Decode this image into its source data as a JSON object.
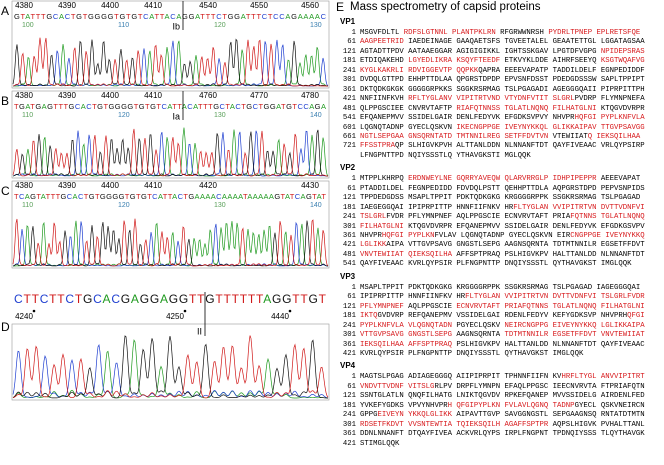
{
  "panels": [
    {
      "label": "A",
      "positions": [
        [
          4380,
          4390,
          4400,
          4410
        ],
        [
          4540,
          4550,
          4560
        ]
      ],
      "sequence": "GTATTTGCACTGTGGGGTGTGTCATTACAGGATTTCTGGATTTCTCCAGAAAAC",
      "trace_numbers": [
        100,
        110,
        120,
        130
      ],
      "junction": "Ib"
    },
    {
      "label": "B",
      "positions": [
        [
          4380,
          4390,
          4400,
          4410
        ],
        [
          4760,
          4770,
          4780
        ]
      ],
      "sequence": "TGATGAGTTTGCACTGTGGGGTGTGTCATTACATTTGCTACTGCTGGATGTCCAGA",
      "trace_numbers": [
        110,
        120,
        130,
        140
      ],
      "junction": "Ia"
    },
    {
      "label": "C",
      "positions": [
        [
          4380,
          4390,
          4400,
          4410
        ],
        [
          4420,
          4430
        ]
      ],
      "sequence": "TCAGTATTTGCACTGTGGGGTGTGTCATTACTGAAAACAAAATAAAAAGTATCAGTAT",
      "trace_numbers": [
        110,
        120,
        130,
        140
      ]
    },
    {
      "label": "D",
      "positions": [
        [
          4240,
          4250
        ],
        [
          4440
        ]
      ],
      "sequence": "CTTCTTCTGCACGAGGAGGTTGTTTTTTAGGTTGT",
      "junction": "II"
    }
  ],
  "base_colors": {
    "A": "#1f9a1f",
    "C": "#1f3fd0",
    "G": "#111111",
    "T": "#d01818"
  },
  "panel_e": {
    "label": "E",
    "title": "Mass spectrometry of capsid proteins",
    "proteins": [
      {
        "name": "VP1",
        "lines": [
          {
            "number": 1,
            "segments": [
              {
                "text": "MSGVFDLTL "
              },
              {
                "text": "RDFSLGTNNL PLANTPKLRN",
                "color": "#d7191c"
              },
              {
                "text": " RFGRWWNRSH "
              },
              {
                "text": "PYDRLTPNEP EPLRETSFQE",
                "color": "#d7191c"
              }
            ]
          },
          {
            "number": 61,
            "segments": [
              {
                "text": "AAGPEETRID",
                "color": "#d7191c"
              },
              {
                "text": " IAEDEINAGE GAAQAETSFS TGVEETALEL GEAATETTGL LGGATAGSAA"
              }
            ]
          },
          {
            "number": 121,
            "segments": [
              {
                "text": "AGTADTTPDV AATAAEGGAR AGIGIGIKKL IGHTSSKGAV LPGTDFVGPG "
              },
              {
                "text": "NPIDEPSRAS",
                "color": "#d7191c"
              }
            ]
          },
          {
            "number": 181,
            "segments": [
              {
                "text": "ETDIQAKEHD "
              },
              {
                "text": "LGYEDLIKRA KSQYFTEEDF",
                "color": "#d7191c"
              },
              {
                "text": " ETKVYKLDDE AIHRFSEEYQ "
              },
              {
                "text": "KSGTWQAFVG",
                "color": "#d7191c"
              }
            ]
          },
          {
            "number": 241,
            "segments": [
              {
                "text": "KYGLKAKRLI RDVIGGEVTP QQPKK",
                "color": "#d7191c"
              },
              {
                "text": "QAPRA EEEEVAPATP TADDILDELF EGNPEDIDDF"
              }
            ]
          },
          {
            "number": 301,
            "segments": [
              {
                "text": "DVDQLGTTPD EHHPTTDLAA QPGRSTDPDP EPVSNFDSST PDEDGDSSSW SAPLTPPIPT"
              }
            ]
          },
          {
            "number": 361,
            "segments": [
              {
                "text": "DKTQDKGKGK GGGGGRPKKS SGGKRSRMAG TSLPGAGADI AGEGGGQAII PIPRPITTPH"
              }
            ]
          },
          {
            "number": 421,
            "segments": [
              {
                "text": "NNFIINFKVH "
              },
              {
                "text": "RFLTYGLANV VIPITRTVND VTYDNFVTIT SLGRL",
                "color": "#d7191c"
              },
              {
                "text": "PVDRP FLYMNPNEFA"
              }
            ]
          },
          {
            "number": 481,
            "segments": [
              {
                "text": "QLPPGSCIEE CNVRVTAFTP "
              },
              {
                "text": "RIAFQTNNSS TGLATLNQNQ FILHATGLNI",
                "color": "#d7191c"
              },
              {
                "text": " KTQGVDVRPR"
              }
            ]
          },
          {
            "number": 541,
            "segments": [
              {
                "text": "EFQANEPMVV SSIDELGAIR DENLFEDYVK EFGDKSVPVY NHVPR"
              },
              {
                "text": "HQFGI PYPLKNFVLA",
                "color": "#d7191c"
              }
            ]
          },
          {
            "number": 601,
            "segments": [
              {
                "text": "LQGNQTADNP GYECLQSKVN "
              },
              {
                "text": "IKECNGPPGE IVEYNYKKQL GLIKKAIPAV TTGVPSAVGG",
                "color": "#d7191c"
              }
            ]
          },
          {
            "number": 661,
            "segments": [
              {
                "text": "NGTLSEPGAA GNSQRNTATD TMTNNILREG SETFFDVTVN",
                "color": "#d7191c"
              },
              {
                "text": " VTEWIIAT"
              },
              {
                "text": "Q IEKSQILHAA",
                "color": "#d7191c"
              }
            ]
          },
          {
            "number": 721,
            "segments": [
              {
                "text": "FFSSTPRA",
                "color": "#d7191c"
              },
              {
                "text": "QP SLHIGVKPVH ALTTANLDDN NLNNANFTDT QAYFIVEAAC VRLQYPSIRP"
              }
            ]
          },
          {
            "segments": [
              {
                "text": "LFNGPNTTPD NQIYSSSTLQ YTHAVGKSTI MGLQQK"
              }
            ]
          }
        ]
      },
      {
        "name": "VP2",
        "lines": [
          {
            "number": 1,
            "segments": [
              {
                "text": "MTPPLKHRPQ "
              },
              {
                "text": "ERDNWEYLNE GQRRYAVEQW QLARVRRGLP IDHPIPEPPR",
                "color": "#d7191c"
              },
              {
                "text": " AEEEVAPAT"
              }
            ]
          },
          {
            "number": 61,
            "segments": [
              {
                "text": "PTADDILDEL FEGNPEDIDD FDVDQLPSTT QEHHPTTDLA AQPGRSTDPD PEPVSNPIDS"
              }
            ]
          },
          {
            "number": 121,
            "segments": [
              {
                "text": "TPPDEDGDSS MSAPLTPPIT PDKTQDKGKG KRGGGGRPPK SSGKRSRMAG TSLPGAGAD"
              }
            ]
          },
          {
            "number": 181,
            "segments": [
              {
                "text": "IAEGEGGQAI IPIPRPITTP HNNFIIFNKV HR"
              },
              {
                "text": "FLTYGLAN VVIPITRTVN DVTTVDNFVI",
                "color": "#d7191c"
              }
            ]
          },
          {
            "number": 241,
            "segments": [
              {
                "text": "TSLGRL",
                "color": "#d7191c"
              },
              {
                "text": "FVDR PFLYMNPNEF AQLPPGSCIE ECNVRVTAFT PRIA"
              },
              {
                "text": "FQTNNS TGLATLNQNQ",
                "color": "#d7191c"
              }
            ]
          },
          {
            "number": 301,
            "segments": [
              {
                "text": "FILHATGLNI",
                "color": "#d7191c"
              },
              {
                "text": " KTQGVDVRPR EFQANEPMVV SSIDELGAIR DENLFEDYVK EFGDKGSVPV"
              }
            ]
          },
          {
            "number": 361,
            "segments": [
              {
                "text": "NHVPR"
              },
              {
                "text": "HQFGI PYPLKN",
                "color": "#d7191c"
              },
              {
                "text": "FVLAV LQGNQTADNP GYECLQSKVN EIR"
              },
              {
                "text": "CNGPPGE IVEYNYKKQ",
                "color": "#d7191c"
              }
            ]
          },
          {
            "number": 421,
            "segments": [
              {
                "text": "LGLIKK",
                "color": "#d7191c"
              },
              {
                "text": "AIPA VTTGVPSAVG GNGSTLSEPG AAGNSQRNTA TDTMTNNILR EGSETFFDVT"
              }
            ]
          },
          {
            "number": 481,
            "segments": [
              {
                "text": "VNVTEWIIAT QIEKSQILHA",
                "color": "#d7191c"
              },
              {
                "text": " AFFSPTPRAQ PSLHIGVKPV HALTTANLDD NLNNANFTDT"
              }
            ]
          },
          {
            "number": 541,
            "segments": [
              {
                "text": "QAYFIVEAAC KVRLQYPSIR PLFNGPNTTP DNQIYSSSTL QYTHAVGKST IMGLQQK"
              }
            ]
          }
        ]
      },
      {
        "name": "VP3",
        "lines": [
          {
            "number": 1,
            "segments": [
              {
                "text": "MSAPLTPPIT PDKTQDKGKG KRGGGGRPPK SSGKRSRMAG TSLPGAGAD IAGEGGGQAI"
              }
            ]
          },
          {
            "number": 61,
            "segments": [
              {
                "text": "IPIPRPITTP HNNFIINFKV HR"
              },
              {
                "text": "FLTYGLAN VVIPITRTVN DVTTVDNFVI TSLGRLFVDR",
                "color": "#d7191c"
              }
            ]
          },
          {
            "number": 121,
            "segments": [
              {
                "text": "PFLYMNPNEF",
                "color": "#d7191c"
              },
              {
                "text": " AQLPPGSCIE "
              },
              {
                "text": "ECNVRVTAFT PRIAFQTNNS TGLATLNQNQ FILHATGLNI",
                "color": "#d7191c"
              }
            ]
          },
          {
            "number": 181,
            "segments": [
              {
                "text": "IKTQ",
                "color": "#d7191c"
              },
              {
                "text": "GVDVRP REFQANEPMV VSSIDELGAI RDENLFEDYV KEFYGDKSVP NHVPRH"
              },
              {
                "text": "QFGI",
                "color": "#d7191c"
              }
            ]
          },
          {
            "number": 241,
            "segments": [
              {
                "text": "PYPLKNFVLA VLQGNQTADN",
                "color": "#d7191c"
              },
              {
                "text": " PGYECLQSKV "
              },
              {
                "text": "NEIRCNGPPG EIVEYNYKKQ LGLIKKAIPA",
                "color": "#d7191c"
              }
            ]
          },
          {
            "number": 301,
            "segments": [
              {
                "text": "VTTGVPSAVG GNGSTLSEPG",
                "color": "#d7191c"
              },
              {
                "text": " AAGNSQRNTA "
              },
              {
                "text": "TDTMTNNILR EGSETFFDVT VNVTEWIIAT",
                "color": "#d7191c"
              }
            ]
          },
          {
            "number": 361,
            "segments": [
              {
                "text": "IEKSQILHAA AFFSPTPRAQ",
                "color": "#d7191c"
              },
              {
                "text": " PSLHIGVKPV HALTTANLDD NLNNANFTDT QAYFIVEAAC"
              }
            ]
          },
          {
            "number": 421,
            "segments": [
              {
                "text": "KVRLQYPSIR PLFNGPNTTP DNQIYSSSTL QYTHAVGKST IMGLQQK"
              }
            ]
          }
        ]
      },
      {
        "name": "VP4",
        "lines": [
          {
            "number": 1,
            "segments": [
              {
                "text": "MAGTSLPGAG ADIAGEGGGQ AIIPIPRPIT TPHNNFIIFN KV"
              },
              {
                "text": "HRFLTYGL ANVVIPITRT",
                "color": "#d7191c"
              }
            ]
          },
          {
            "number": 61,
            "segments": [
              {
                "text": "VNDVTTVDNF VITSLG",
                "color": "#d7191c"
              },
              {
                "text": "RLPV DRPFLYMNPN EFAQLPPGSC IEECNVRVTA FTPRIAFQTN"
              }
            ]
          },
          {
            "number": 121,
            "segments": [
              {
                "text": "SSNTGLATLN QNQFILHATG LNIKTQGVDV RPKEFQANEP MVVSSIDELG AIRDENLFED"
              }
            ]
          },
          {
            "number": 181,
            "segments": [
              {
                "text": "YVKEFYGDKS VPVYNHVPR"
              },
              {
                "text": "H QFGIPYPLKN FVLAVLQGNQ TADNP",
                "color": "#d7191c"
              },
              {
                "text": "GYECL QSKVNEIRCN"
              }
            ]
          },
          {
            "number": 241,
            "segments": [
              {
                "text": "GPPG"
              },
              {
                "text": "EIVEYN YKKQLGLIKK",
                "color": "#d7191c"
              },
              {
                "text": " AIPAVTTGVP SAVGGNGSTL SEPGAAGNSQ RNTATDTMTN"
              }
            ]
          },
          {
            "number": 301,
            "segments": [
              {
                "text": "RDSETFKDVT VVSNTEWTIA TQIEKSQILH AGAFFSPTPR",
                "color": "#d7191c"
              },
              {
                "text": " AQPSLHIGVK PVHALTTANL"
              }
            ]
          },
          {
            "number": 361,
            "segments": [
              {
                "text": "DDNLNNANFT DTQAYFIVEA ACKVRLQYPS IRPLFNGPNT TPDNQIYSSS TLQYTHAVGK"
              }
            ]
          },
          {
            "number": 421,
            "segments": [
              {
                "text": "STIMGLQQK"
              }
            ]
          }
        ]
      }
    ]
  }
}
